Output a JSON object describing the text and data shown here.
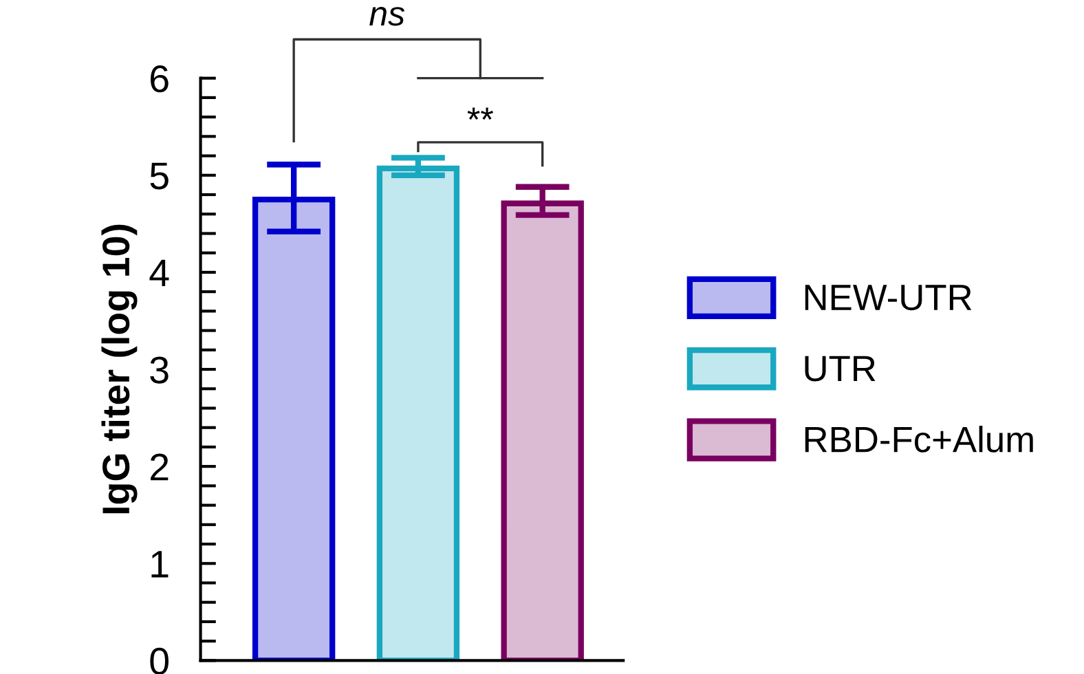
{
  "chart_data": {
    "type": "bar",
    "ylabel": "IgG titer (log 10)",
    "categories": [
      null,
      null,
      null
    ],
    "series": [
      {
        "name": "NEW-UTR",
        "color": "#0000cc",
        "values": [
          4.75,
          null,
          null
        ],
        "errors": [
          [
            4.42,
            5.11
          ],
          null,
          null
        ]
      },
      {
        "name": "UTR",
        "color": "#1aa8c0",
        "values": [
          null,
          5.07,
          null
        ],
        "errors": [
          null,
          [
            5.0,
            5.18
          ],
          null
        ]
      },
      {
        "name": "RBD-Fc+Alum",
        "color": "#7a0060",
        "values": [
          null,
          null,
          4.71
        ],
        "errors": [
          null,
          null,
          [
            4.59,
            4.88
          ]
        ]
      }
    ],
    "ylim": [
      0,
      6
    ],
    "yticks": [
      0,
      {
        "value": 0.2,
        "label": null
      },
      {
        "value": 0.4,
        "label": null
      },
      {
        "value": 0.6,
        "label": null
      },
      {
        "value": 0.8,
        "label": null
      },
      1,
      {
        "value": 1.2,
        "label": null
      },
      {
        "value": 1.4,
        "label": null
      },
      {
        "value": 1.6,
        "label": null
      },
      {
        "value": 1.8,
        "label": null
      },
      2,
      {
        "value": 2.2,
        "label": null
      },
      {
        "value": 2.4,
        "label": null
      },
      {
        "value": 2.6,
        "label": null
      },
      {
        "value": 2.8,
        "label": null
      },
      3,
      {
        "value": 3.2,
        "label": null
      },
      {
        "value": 3.4,
        "label": null
      },
      {
        "value": 3.6,
        "label": null
      },
      {
        "value": 3.8,
        "label": null
      },
      4,
      {
        "value": 4.2,
        "label": null
      },
      {
        "value": 4.4,
        "label": null
      },
      {
        "value": 4.6,
        "label": null
      },
      {
        "value": 4.8,
        "label": null
      },
      5,
      {
        "value": 5.2,
        "label": null
      },
      {
        "value": 5.4,
        "label": null
      },
      {
        "value": 5.6,
        "label": null
      },
      {
        "value": 5.8,
        "label": null
      },
      6
    ],
    "annotations": [
      "ns",
      "**"
    ],
    "legend": "right",
    "grid": false
  }
}
